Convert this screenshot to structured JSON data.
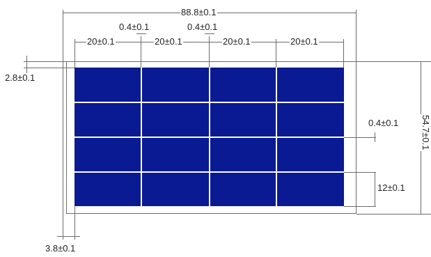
{
  "dimensions": {
    "overall_width": "88.8±0.1",
    "overall_height": "54.7±0.1",
    "cell_width": "20±0.1",
    "gap_a": "0.4±0.1",
    "gap_b": "0.4±0.1",
    "gap_right": "0.4±0.1",
    "top_margin": "2.8±0.1",
    "cell_height": "12±0.1",
    "left_margin": "3.8±0.1"
  },
  "colors": {
    "cell": "#0a1a93",
    "line": "#6b6b6b"
  }
}
